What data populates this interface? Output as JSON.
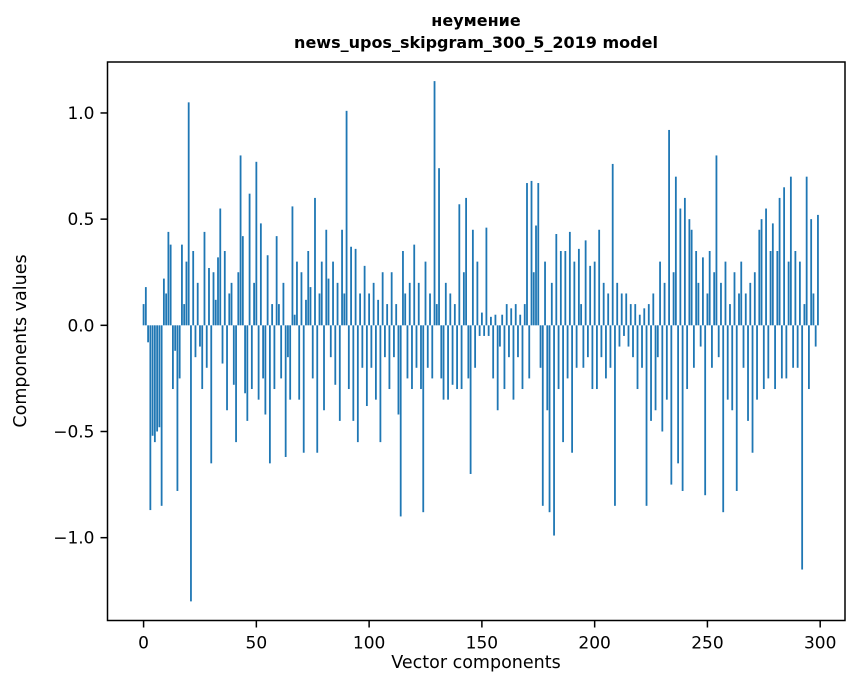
{
  "figure": {
    "background": "#ffffff"
  },
  "chart_data": {
    "type": "bar",
    "title": "неумение",
    "subtitle": "news_upos_skipgram_300_5_2019 model",
    "xlabel": "Vector components",
    "ylabel": "Components values",
    "bar_color": "#1f77b4",
    "grid": false,
    "legend": "none",
    "xlim": [
      -16,
      311
    ],
    "ylim": [
      -1.39,
      1.24
    ],
    "xticks": [
      0,
      50,
      100,
      150,
      200,
      250,
      300
    ],
    "xtick_labels": [
      "0",
      "50",
      "100",
      "150",
      "200",
      "250",
      "300"
    ],
    "yticks": [
      -1.0,
      -0.5,
      0.0,
      0.5,
      1.0
    ],
    "ytick_labels": [
      "−1.0",
      "−0.5",
      "0.0",
      "0.5",
      "1.0"
    ],
    "x_start": 0,
    "values": [
      0.1,
      0.18,
      -0.08,
      -0.87,
      -0.52,
      -0.55,
      -0.5,
      -0.48,
      -0.85,
      0.22,
      0.15,
      0.44,
      0.38,
      -0.3,
      -0.12,
      -0.78,
      -0.25,
      0.38,
      0.1,
      0.3,
      1.05,
      -1.3,
      0.35,
      -0.15,
      0.2,
      -0.1,
      -0.3,
      0.44,
      -0.2,
      0.27,
      -0.65,
      0.25,
      0.12,
      0.32,
      0.55,
      -0.18,
      0.35,
      -0.4,
      0.15,
      0.2,
      -0.28,
      -0.55,
      0.25,
      0.8,
      0.42,
      -0.32,
      -0.45,
      0.62,
      -0.3,
      0.2,
      0.77,
      -0.35,
      0.48,
      -0.25,
      -0.42,
      0.33,
      -0.65,
      0.1,
      -0.3,
      0.42,
      0.1,
      -0.25,
      0.2,
      -0.62,
      -0.15,
      -0.35,
      0.56,
      0.05,
      0.3,
      -0.35,
      0.25,
      -0.6,
      0.12,
      0.35,
      0.18,
      -0.25,
      0.6,
      -0.6,
      0.15,
      0.3,
      -0.4,
      0.45,
      0.22,
      -0.15,
      0.3,
      -0.28,
      0.2,
      -0.45,
      0.45,
      0.15,
      1.01,
      -0.3,
      0.37,
      -0.45,
      0.36,
      -0.55,
      0.15,
      -0.2,
      0.28,
      -0.38,
      0.15,
      -0.2,
      0.2,
      -0.35,
      0.12,
      -0.55,
      0.25,
      -0.15,
      0.1,
      -0.3,
      0.25,
      -0.15,
      0.1,
      -0.42,
      -0.9,
      0.35,
      0.15,
      -0.25,
      0.2,
      -0.3,
      0.38,
      -0.2,
      0.2,
      -0.3,
      -0.88,
      0.3,
      -0.2,
      0.15,
      -0.25,
      1.15,
      0.1,
      0.74,
      -0.25,
      -0.35,
      0.2,
      -0.35,
      0.15,
      -0.28,
      0.1,
      -0.3,
      0.57,
      -0.3,
      0.25,
      0.6,
      -0.25,
      -0.7,
      0.45,
      -0.2,
      0.3,
      -0.05,
      0.06,
      -0.05,
      0.46,
      -0.05,
      0.04,
      -0.25,
      0.05,
      -0.4,
      -0.1,
      0.05,
      -0.3,
      0.1,
      -0.15,
      0.08,
      -0.35,
      0.1,
      -0.15,
      0.05,
      -0.3,
      0.1,
      0.67,
      -0.25,
      0.68,
      0.25,
      0.47,
      0.67,
      -0.2,
      -0.85,
      0.3,
      -0.4,
      -0.88,
      0.2,
      -0.99,
      0.43,
      -0.3,
      0.35,
      -0.55,
      0.35,
      -0.25,
      0.44,
      -0.6,
      0.3,
      -0.2,
      0.36,
      0.1,
      -0.2,
      0.4,
      -0.15,
      0.28,
      -0.3,
      0.3,
      -0.3,
      0.45,
      -0.15,
      0.2,
      -0.25,
      0.15,
      -0.2,
      0.76,
      -0.85,
      0.2,
      -0.1,
      0.15,
      -0.05,
      0.15,
      -0.1,
      0.1,
      -0.15,
      0.1,
      -0.3,
      0.05,
      -0.2,
      0.08,
      -0.85,
      0.1,
      -0.45,
      0.15,
      -0.4,
      -0.15,
      0.3,
      -0.5,
      0.2,
      -0.35,
      0.92,
      -0.75,
      0.25,
      0.7,
      -0.65,
      0.55,
      -0.78,
      0.6,
      -0.3,
      0.5,
      0.45,
      -0.2,
      0.35,
      0.2,
      -0.1,
      0.32,
      -0.8,
      0.15,
      0.35,
      -0.2,
      0.25,
      0.8,
      -0.15,
      0.2,
      -0.88,
      0.3,
      -0.35,
      0.1,
      -0.4,
      0.25,
      -0.78,
      0.15,
      0.3,
      -0.2,
      0.15,
      -0.45,
      0.2,
      -0.6,
      0.25,
      -0.35,
      0.45,
      0.5,
      -0.3,
      0.55,
      -0.25,
      0.35,
      0.48,
      -0.3,
      0.35,
      0.6,
      -0.25,
      0.65,
      -0.25,
      0.3,
      0.7,
      -0.2,
      0.35,
      -0.2,
      0.3,
      -1.15,
      0.1,
      0.7,
      -0.3,
      0.5,
      0.15,
      -0.1,
      0.52
    ]
  }
}
